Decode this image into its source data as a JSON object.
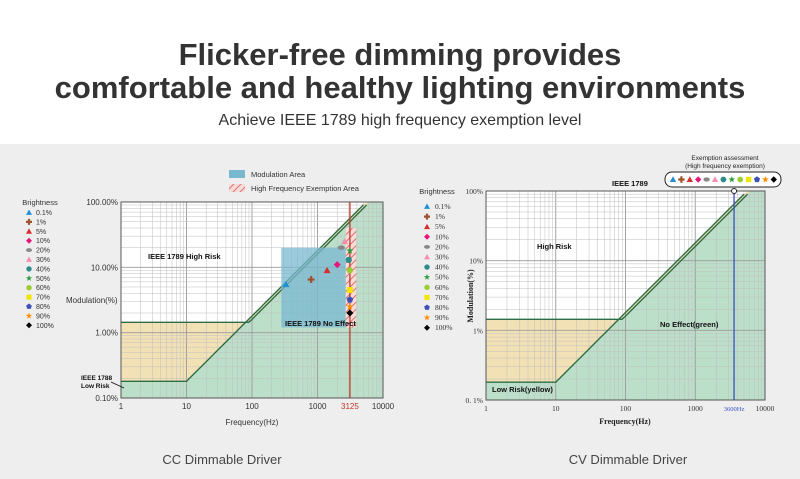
{
  "header": {
    "title_line1": "Flicker-free dimming provides",
    "title_line2": "comfortable and healthy lighting environments",
    "subtitle": "Achieve IEEE 1789 high frequency exemption level"
  },
  "colors": {
    "panel": "#eeeeee",
    "risk_yellow": "#f2dfb2",
    "no_effect_green": "#b5dcc4",
    "modulation_area": "#7ab8d0",
    "exemption_hatch": "#d9706f",
    "boundary_line": "#2e6e45",
    "marker_line": "#c0392b",
    "cv_marker_line": "#3b4fc4"
  },
  "chart_data": [
    {
      "type": "scatter",
      "caption": "CC Dimmable Driver",
      "xlabel": "Frequency(Hz)",
      "ylabel": "Modulation(%)",
      "xscale": "log",
      "yscale": "log",
      "xlim": [
        1,
        10000
      ],
      "ylim": [
        0.1,
        100
      ],
      "x_ticks": [
        "1",
        "10",
        "100",
        "1000",
        "10000"
      ],
      "y_ticks": [
        "0.10%",
        "1.00%",
        "10.00%",
        "100.00%"
      ],
      "special_tick": "3125",
      "legend_title": "Brightness",
      "legend_placement": "left",
      "legend_area_labels": [
        "Modulation Area",
        "High Frequency Exemption Area"
      ],
      "region_labels": [
        "IEEE 1789 High Risk",
        "IEEE 1789 No Effect",
        "IEEE 1788\nLow Risk"
      ],
      "series": [
        {
          "name": "0.1%",
          "symbol": "triangle",
          "color": "#1f8fd6",
          "x": 330,
          "y": 5.5
        },
        {
          "name": "1%",
          "symbol": "plus",
          "color": "#a0522d",
          "x": 800,
          "y": 6.5
        },
        {
          "name": "5%",
          "symbol": "triangle",
          "color": "#d32f2f",
          "x": 1400,
          "y": 9
        },
        {
          "name": "10%",
          "symbol": "diamond",
          "color": "#e6177a",
          "x": 2000,
          "y": 11
        },
        {
          "name": "20%",
          "symbol": "ellipse",
          "color": "#888888",
          "x": 2300,
          "y": 20
        },
        {
          "name": "30%",
          "symbol": "triangle",
          "color": "#f48fb1",
          "x": 2600,
          "y": 25
        },
        {
          "name": "40%",
          "symbol": "circle",
          "color": "#2e8b8b",
          "x": 3000,
          "y": 13
        },
        {
          "name": "50%",
          "symbol": "star",
          "color": "#2e9e3e",
          "x": 3125,
          "y": 18
        },
        {
          "name": "60%",
          "symbol": "circle",
          "color": "#9acd32",
          "x": 3125,
          "y": 9
        },
        {
          "name": "70%",
          "symbol": "square",
          "color": "#f2e600",
          "x": 3125,
          "y": 4.5
        },
        {
          "name": "80%",
          "symbol": "pentagon",
          "color": "#3f51b5",
          "x": 3125,
          "y": 3.2
        },
        {
          "name": "90%",
          "symbol": "star",
          "color": "#ff8c00",
          "x": 3125,
          "y": 2.5
        },
        {
          "name": "100%",
          "symbol": "diamond",
          "color": "#000000",
          "x": 3125,
          "y": 2.0
        }
      ]
    },
    {
      "type": "scatter",
      "caption": "CV Dimmable Driver",
      "xlabel": "Frequency(Hz)",
      "ylabel": "Modulation(%)",
      "xscale": "log",
      "yscale": "log",
      "xlim": [
        1,
        10000
      ],
      "ylim": [
        0.1,
        100
      ],
      "x_ticks": [
        "1",
        "10",
        "100",
        "1000",
        "10000"
      ],
      "y_ticks": [
        "0. 1%",
        "1%",
        "10%",
        "100%"
      ],
      "special_tick": "3600Hz",
      "legend_title": "Brightness",
      "legend_placement": "left",
      "exemption_title": "Exemption assessment\n(High frequency exemption)",
      "region_labels": [
        "IEEE 1789",
        "High Risk",
        "No Effect(green)",
        "Low Risk(yellow)"
      ],
      "series": [
        {
          "name": "0.1%",
          "symbol": "triangle",
          "color": "#1f8fd6",
          "x": 3600,
          "y": 100
        },
        {
          "name": "1%",
          "symbol": "plus",
          "color": "#a0522d",
          "x": 3600,
          "y": 100
        },
        {
          "name": "5%",
          "symbol": "triangle",
          "color": "#d32f2f",
          "x": 3600,
          "y": 100
        },
        {
          "name": "10%",
          "symbol": "diamond",
          "color": "#e6177a",
          "x": 3600,
          "y": 100
        },
        {
          "name": "20%",
          "symbol": "ellipse",
          "color": "#888888",
          "x": 3600,
          "y": 100
        },
        {
          "name": "30%",
          "symbol": "triangle",
          "color": "#f48fb1",
          "x": 3600,
          "y": 100
        },
        {
          "name": "40%",
          "symbol": "circle",
          "color": "#2e8b8b",
          "x": 3600,
          "y": 100
        },
        {
          "name": "50%",
          "symbol": "star",
          "color": "#2e9e3e",
          "x": 3600,
          "y": 100
        },
        {
          "name": "60%",
          "symbol": "circle",
          "color": "#9acd32",
          "x": 3600,
          "y": 100
        },
        {
          "name": "70%",
          "symbol": "square",
          "color": "#f2e600",
          "x": 3600,
          "y": 100
        },
        {
          "name": "80%",
          "symbol": "pentagon",
          "color": "#3f51b5",
          "x": 3600,
          "y": 100
        },
        {
          "name": "90%",
          "symbol": "star",
          "color": "#ff8c00",
          "x": 3600,
          "y": 100
        },
        {
          "name": "100%",
          "symbol": "diamond",
          "color": "#000000",
          "x": 3600,
          "y": 100
        }
      ]
    }
  ]
}
